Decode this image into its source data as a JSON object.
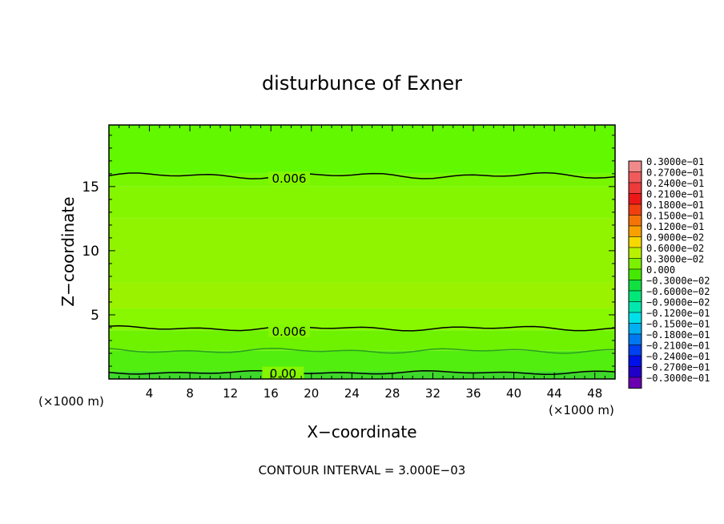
{
  "chart_data": {
    "type": "heatmap",
    "title": "disturbunce of Exner",
    "xlabel": "X−coordinate",
    "ylabel": "Z−coordinate",
    "x_unit_left": "(×1000 m)",
    "x_unit_right": "(×1000 m)",
    "xlim": [
      0,
      50
    ],
    "ylim": [
      0,
      19.8
    ],
    "xticks": [
      "4",
      "8",
      "12",
      "16",
      "20",
      "24",
      "28",
      "32",
      "36",
      "40",
      "44",
      "48"
    ],
    "xtick_values": [
      4,
      8,
      12,
      16,
      20,
      24,
      28,
      32,
      36,
      40,
      44,
      48
    ],
    "yticks": [
      "5",
      "10",
      "15"
    ],
    "ytick_values": [
      5,
      10,
      15
    ],
    "footer": "CONTOUR INTERVAL = 3.000E−03",
    "contour_labels": [
      {
        "text": "0.006",
        "x": 17.8,
        "z": 15.6
      },
      {
        "text": "0.006",
        "x": 17.8,
        "z": 3.7
      },
      {
        "text": "0.00",
        "x": 17.2,
        "z": 0.4
      }
    ],
    "field_bands": [
      {
        "z": [
          0.0,
          0.6
        ],
        "value": 0.0045,
        "color": "#3ed82a"
      },
      {
        "z": [
          0.6,
          2.2
        ],
        "value": 0.0055,
        "color": "#52ee10"
      },
      {
        "z": [
          2.2,
          3.8
        ],
        "value": 0.0065,
        "color": "#6ef200"
      },
      {
        "z": [
          3.8,
          5.5
        ],
        "value": 0.0075,
        "color": "#88f800"
      },
      {
        "z": [
          5.5,
          7.5
        ],
        "value": 0.0082,
        "color": "#9af200"
      },
      {
        "z": [
          7.5,
          12.5
        ],
        "value": 0.0078,
        "color": "#90f400"
      },
      {
        "z": [
          12.5,
          15.0
        ],
        "value": 0.0072,
        "color": "#84f600"
      },
      {
        "z": [
          15.0,
          16.0
        ],
        "value": 0.0066,
        "color": "#78f600"
      },
      {
        "z": [
          16.0,
          19.8
        ],
        "value": 0.0058,
        "color": "#62f800"
      }
    ],
    "colorbar": [
      {
        "label": "0.3000e−01",
        "color": "#f08a8a"
      },
      {
        "label": "0.2700e−01",
        "color": "#f05a5a"
      },
      {
        "label": "0.2400e−01",
        "color": "#ee3a3a"
      },
      {
        "label": "0.2100e−01",
        "color": "#ec1818"
      },
      {
        "label": "0.1800e−01",
        "color": "#f04010"
      },
      {
        "label": "0.1500e−01",
        "color": "#f47408"
      },
      {
        "label": "0.1200e−01",
        "color": "#f8a000"
      },
      {
        "label": "0.9000e−02",
        "color": "#f4d800"
      },
      {
        "label": "0.6000e−02",
        "color": "#b8f000"
      },
      {
        "label": "0.3000e−02",
        "color": "#7cf000"
      },
      {
        "label": "0.000",
        "color": "#44e800"
      },
      {
        "label": "−0.3000e−02",
        "color": "#10e040"
      },
      {
        "label": "−0.6000e−02",
        "color": "#00e878"
      },
      {
        "label": "−0.9000e−02",
        "color": "#00e8b0"
      },
      {
        "label": "−0.1200e−01",
        "color": "#00e0e8"
      },
      {
        "label": "−0.1500e−01",
        "color": "#00b0f0"
      },
      {
        "label": "−0.1800e−01",
        "color": "#0078f0"
      },
      {
        "label": "−0.2100e−01",
        "color": "#0040f0"
      },
      {
        "label": "−0.2400e−01",
        "color": "#0010e8"
      },
      {
        "label": "−0.2700e−01",
        "color": "#2000c8"
      },
      {
        "label": "−0.3000e−01",
        "color": "#6a00b0"
      }
    ],
    "grid": false,
    "legend_position": "right"
  }
}
